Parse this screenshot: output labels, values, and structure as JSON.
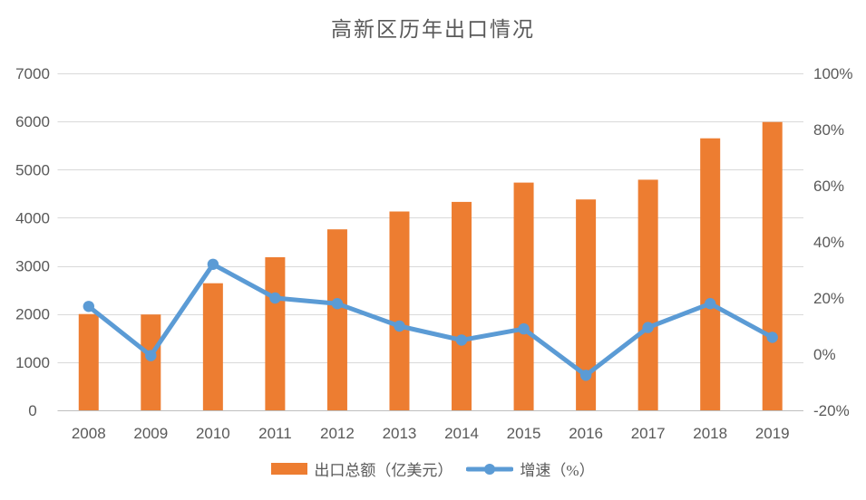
{
  "chart_data": {
    "type": "combo-bar-line",
    "title": "高新区历年出口情况",
    "title_color": "#595959",
    "text_color": "#595959",
    "gridline_color": "#D9D9D9",
    "axis_line_color": "#BFBFBF",
    "grid": true,
    "legend_position": "bottom",
    "categories": [
      "2008",
      "2009",
      "2010",
      "2011",
      "2012",
      "2013",
      "2014",
      "2015",
      "2016",
      "2017",
      "2018",
      "2019"
    ],
    "series": [
      {
        "name": "出口总额（亿美元）",
        "type": "bar",
        "axis": "left",
        "color": "#ED7D31",
        "values": [
          2000,
          1990,
          2640,
          3180,
          3760,
          4130,
          4330,
          4730,
          4380,
          4790,
          5650,
          5990
        ]
      },
      {
        "name": "增速（%）",
        "type": "line",
        "axis": "right",
        "color": "#5B9BD5",
        "values": [
          17,
          -0.5,
          32,
          20,
          18,
          10,
          5,
          9,
          -7.5,
          9.5,
          18,
          6
        ]
      }
    ],
    "left_axis": {
      "min": 0,
      "max": 7000,
      "tick_values": [
        0,
        1000,
        2000,
        3000,
        4000,
        5000,
        6000,
        7000
      ],
      "tick_labels": [
        "0",
        "1000",
        "2000",
        "3000",
        "4000",
        "5000",
        "6000",
        "7000"
      ]
    },
    "right_axis": {
      "min": -20,
      "max": 100,
      "tick_values": [
        -20,
        0,
        20,
        40,
        60,
        80,
        100
      ],
      "tick_labels": [
        "-20%",
        "0%",
        "20%",
        "40%",
        "60%",
        "80%",
        "100%"
      ]
    }
  }
}
